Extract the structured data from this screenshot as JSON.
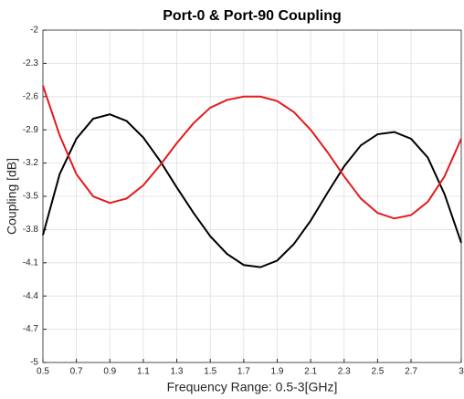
{
  "chart_data": {
    "type": "line",
    "title": "Port-0 & Port-90 Coupling",
    "xlabel": "Frequency Range: 0.5-3[GHz]",
    "ylabel": "Coupling [dB]",
    "x": [
      0.5,
      0.6,
      0.7,
      0.8,
      0.9,
      1.0,
      1.1,
      1.2,
      1.3,
      1.4,
      1.5,
      1.6,
      1.7,
      1.8,
      1.9,
      2.0,
      2.1,
      2.2,
      2.3,
      2.4,
      2.5,
      2.6,
      2.7,
      2.8,
      2.9,
      3.0
    ],
    "series": [
      {
        "color": "#000000",
        "values": [
          -3.85,
          -3.3,
          -2.98,
          -2.8,
          -2.76,
          -2.82,
          -2.97,
          -3.18,
          -3.42,
          -3.65,
          -3.86,
          -4.02,
          -4.12,
          -4.14,
          -4.08,
          -3.93,
          -3.72,
          -3.47,
          -3.23,
          -3.04,
          -2.94,
          -2.92,
          -2.98,
          -3.15,
          -3.48,
          -3.92
        ]
      },
      {
        "color": "#e41a1c",
        "values": [
          -2.5,
          -2.95,
          -3.3,
          -3.5,
          -3.56,
          -3.52,
          -3.4,
          -3.22,
          -3.02,
          -2.84,
          -2.7,
          -2.63,
          -2.6,
          -2.6,
          -2.64,
          -2.74,
          -2.9,
          -3.1,
          -3.32,
          -3.52,
          -3.65,
          -3.7,
          -3.67,
          -3.55,
          -3.32,
          -2.98
        ]
      }
    ],
    "xlim": [
      0.5,
      3
    ],
    "xticks": [
      0.5,
      0.7,
      0.9,
      1.1,
      1.3,
      1.5,
      1.7,
      1.9,
      2.1,
      2.3,
      2.5,
      2.7,
      3
    ],
    "ylim": [
      -5,
      -2
    ],
    "yticks": [
      -5,
      -4.7,
      -4.4,
      -4.1,
      -3.8,
      -3.5,
      -3.2,
      -2.9,
      -2.6,
      -2.3,
      -2
    ],
    "grid": true
  }
}
